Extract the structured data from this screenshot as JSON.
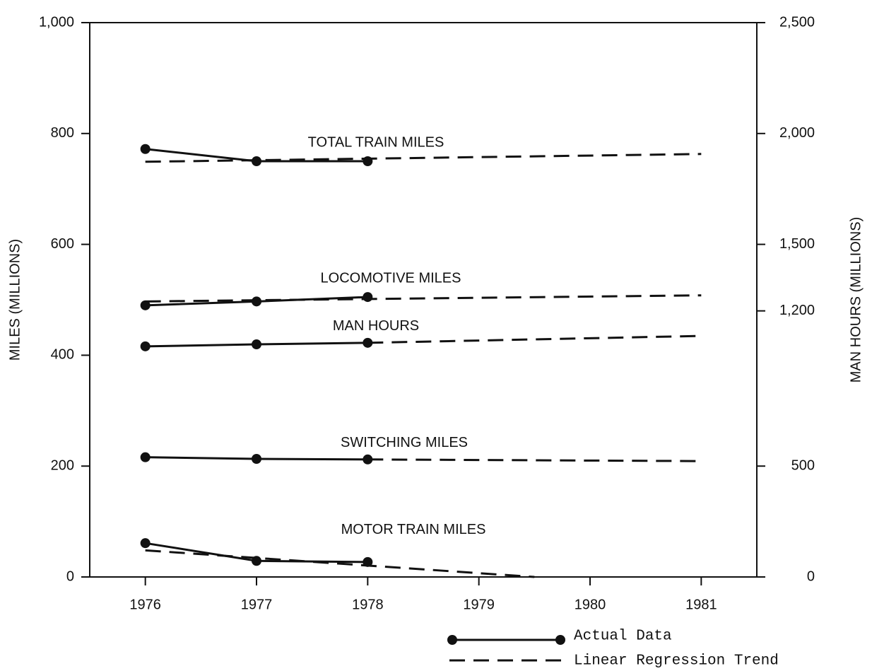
{
  "chart_data": {
    "type": "line",
    "ylabel": "MILES (MILLIONS)",
    "y2label": "MAN HOURS (MILLIONS)",
    "xlim": [
      1975.5,
      1981.5
    ],
    "xticks": [
      1976,
      1977,
      1978,
      1979,
      1980,
      1981
    ],
    "ylim": [
      0,
      1000
    ],
    "yticks": [
      0,
      200,
      400,
      600,
      800,
      {
        "value": 1000,
        "label": "1,000"
      }
    ],
    "y2lim": [
      0,
      2500
    ],
    "y2ticks": [
      0,
      500,
      {
        "value": 1200,
        "label": "1,200"
      },
      {
        "value": 1500,
        "label": "1,500"
      },
      {
        "value": 2000,
        "label": "2,000"
      },
      {
        "value": 2500,
        "label": "2,500"
      }
    ],
    "color": "#111111",
    "series": [
      {
        "name": "TOTAL TRAIN MILES",
        "actual": {
          "x": [
            1976,
            1977,
            1978
          ],
          "values": [
            772,
            750,
            750
          ]
        },
        "trend": {
          "x": [
            1976,
            1981
          ],
          "values": [
            749,
            763
          ]
        }
      },
      {
        "name": "LOCOMOTIVE MILES",
        "actual": {
          "x": [
            1976,
            1977,
            1978
          ],
          "values": [
            490,
            497,
            505
          ]
        },
        "trend": {
          "x": [
            1976,
            1981
          ],
          "values": [
            497,
            508
          ]
        }
      },
      {
        "name": "MAN HOURS",
        "axis": "y2",
        "actual": {
          "x": [
            1976,
            1977,
            1978
          ],
          "values": [
            1040,
            1049,
            1056
          ]
        },
        "trend": {
          "x": [
            1978,
            1981
          ],
          "values": [
            1056,
            1087
          ]
        }
      },
      {
        "name": "SWITCHING MILES",
        "actual": {
          "x": [
            1976,
            1977,
            1978
          ],
          "values": [
            216,
            213,
            212
          ]
        },
        "trend": {
          "x": [
            1978,
            1981
          ],
          "values": [
            212,
            209
          ]
        }
      },
      {
        "name": "MOTOR TRAIN MILES",
        "actual": {
          "x": [
            1976,
            1977,
            1978
          ],
          "values": [
            61,
            29,
            27
          ]
        },
        "trend": {
          "x": [
            1976,
            1979.5
          ],
          "values": [
            48,
            0
          ]
        }
      }
    ],
    "legend": {
      "actual": "Actual Data",
      "trend": "Linear Regression Trend"
    }
  }
}
